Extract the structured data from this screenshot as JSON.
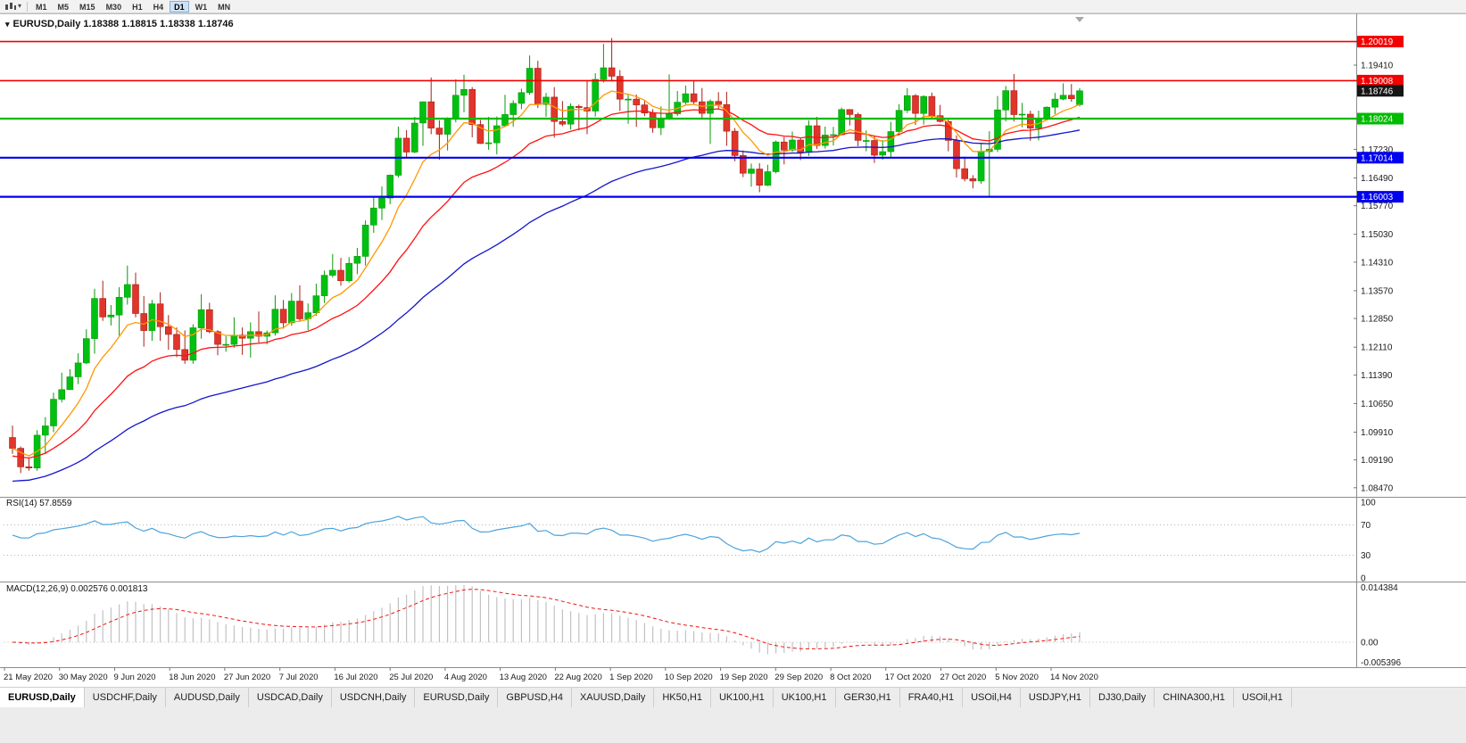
{
  "window": {
    "chart_title": "EURUSD,Daily 1.18388 1.18815 1.18338 1.18746"
  },
  "toolbar": {
    "timeframes": [
      {
        "label": "M1",
        "active": false
      },
      {
        "label": "M5",
        "active": false
      },
      {
        "label": "M15",
        "active": false
      },
      {
        "label": "M30",
        "active": false
      },
      {
        "label": "H1",
        "active": false
      },
      {
        "label": "H4",
        "active": false
      },
      {
        "label": "D1",
        "active": true
      },
      {
        "label": "W1",
        "active": false
      },
      {
        "label": "MN",
        "active": false
      }
    ]
  },
  "chart_data": {
    "type": "candlestick",
    "symbol": "EURUSD",
    "timeframe": "Daily",
    "title": "EURUSD,Daily 1.18388 1.18815 1.18338 1.18746",
    "ohlc": {
      "open": "1.18388",
      "high": "1.18815",
      "low": "1.18338",
      "close": "1.18746"
    },
    "price_range": [
      1.08258,
      1.20703
    ],
    "x_labels": [
      "21 May 2020",
      "30 May 2020",
      "9 Jun 2020",
      "18 Jun 2020",
      "27 Jun 2020",
      "7 Jul 2020",
      "16 Jul 2020",
      "25 Jul 2020",
      "4 Aug 2020",
      "13 Aug 2020",
      "22 Aug 2020",
      "1 Sep 2020",
      "10 Sep 2020",
      "19 Sep 2020",
      "29 Sep 2020",
      "8 Oct 2020",
      "17 Oct 2020",
      "27 Oct 2020",
      "5 Nov 2020",
      "14 Nov 2020"
    ],
    "price_axis_labels": [
      "1.19410",
      "1.17230",
      "1.16490",
      "1.15770",
      "1.15030",
      "1.14310",
      "1.13570",
      "1.12850",
      "1.12110",
      "1.11390",
      "1.10650",
      "1.09910",
      "1.09190",
      "1.08470"
    ],
    "hlines": [
      {
        "price": 1.20019,
        "label": "1.20019",
        "color": "#f40000",
        "width": 1.6
      },
      {
        "price": 1.19008,
        "label": "1.19008",
        "color": "#f40000",
        "width": 1.6
      },
      {
        "price": 1.18024,
        "label": "1.18024",
        "color": "#00bb00",
        "width": 2.2
      },
      {
        "price": 1.17014,
        "label": "1.17014",
        "color": "#0000f0",
        "width": 2.2
      },
      {
        "price": 1.16003,
        "label": "1.16003",
        "color": "#0000f0",
        "width": 2.2
      }
    ],
    "current_price": "1.18746",
    "colors": {
      "bull": "#00c012",
      "bull_stroke": "#089a08",
      "bear": "#e0352b",
      "bear_stroke": "#a81f17"
    },
    "moving_averages": [
      {
        "period": 50,
        "color": "#1414cc",
        "seed_offset": -0.0085
      },
      {
        "period": 21,
        "color": "#ff1111",
        "seed_offset": -0.002
      },
      {
        "period": 8,
        "color": "#ff9800",
        "seed_offset": 0
      }
    ],
    "rsi": {
      "label": "RSI(14) 57.8559",
      "value": "57.8559",
      "period": 14,
      "levels": [
        70,
        30
      ],
      "axis_labels": [
        "100",
        "70",
        "30",
        "0"
      ]
    },
    "macd": {
      "label": "MACD(12,26,9) 0.002576 0.001813",
      "value": "0.002576",
      "signal_value": "0.001813",
      "fast": 12,
      "slow": 26,
      "signal": 9,
      "range": [
        -0.005396,
        0.014384
      ],
      "axis_labels": [
        "0.014384",
        "0.00",
        "-0.005396"
      ]
    },
    "candles": [
      [
        1.0977,
        1.1008,
        1.0935,
        1.0949
      ],
      [
        1.0949,
        1.0954,
        1.0885,
        1.0901
      ],
      [
        1.0901,
        1.0925,
        1.0891,
        1.0898
      ],
      [
        1.0898,
        1.0996,
        1.0891,
        1.0983
      ],
      [
        1.0983,
        1.103,
        1.0934,
        1.1007
      ],
      [
        1.1007,
        1.1093,
        1.0991,
        1.1076
      ],
      [
        1.1076,
        1.1145,
        1.1068,
        1.1101
      ],
      [
        1.1101,
        1.1154,
        1.11,
        1.1134
      ],
      [
        1.1134,
        1.1195,
        1.1115,
        1.117
      ],
      [
        1.117,
        1.1257,
        1.1167,
        1.1233
      ],
      [
        1.1233,
        1.1362,
        1.1194,
        1.1337
      ],
      [
        1.1337,
        1.1383,
        1.1279,
        1.1289
      ],
      [
        1.1289,
        1.132,
        1.1267,
        1.1294
      ],
      [
        1.1294,
        1.1366,
        1.1241,
        1.134
      ],
      [
        1.134,
        1.1422,
        1.1321,
        1.1373
      ],
      [
        1.1373,
        1.1404,
        1.1288,
        1.1298
      ],
      [
        1.1298,
        1.1343,
        1.1212,
        1.1254
      ],
      [
        1.1254,
        1.1333,
        1.1227,
        1.1323
      ],
      [
        1.1323,
        1.1353,
        1.1227,
        1.1264
      ],
      [
        1.1264,
        1.1294,
        1.1204,
        1.1244
      ],
      [
        1.1244,
        1.1262,
        1.1185,
        1.1205
      ],
      [
        1.1205,
        1.1254,
        1.1168,
        1.1177
      ],
      [
        1.1177,
        1.127,
        1.1168,
        1.1261
      ],
      [
        1.1261,
        1.1348,
        1.1233,
        1.1308
      ],
      [
        1.1308,
        1.1326,
        1.1247,
        1.1251
      ],
      [
        1.1251,
        1.1255,
        1.119,
        1.1218
      ],
      [
        1.1218,
        1.1239,
        1.1199,
        1.1218
      ],
      [
        1.1218,
        1.1288,
        1.1209,
        1.1242
      ],
      [
        1.1242,
        1.1262,
        1.1191,
        1.1234
      ],
      [
        1.1234,
        1.1275,
        1.1184,
        1.1251
      ],
      [
        1.1251,
        1.1303,
        1.1223,
        1.1239
      ],
      [
        1.1239,
        1.1254,
        1.1218,
        1.1248
      ],
      [
        1.1248,
        1.1345,
        1.1241,
        1.1309
      ],
      [
        1.1309,
        1.1333,
        1.1259,
        1.1274
      ],
      [
        1.1274,
        1.1351,
        1.1266,
        1.133
      ],
      [
        1.133,
        1.1371,
        1.1277,
        1.1284
      ],
      [
        1.1284,
        1.1324,
        1.1255,
        1.13
      ],
      [
        1.13,
        1.1375,
        1.1292,
        1.1344
      ],
      [
        1.1344,
        1.1409,
        1.1325,
        1.1397
      ],
      [
        1.1397,
        1.1452,
        1.1391,
        1.141
      ],
      [
        1.141,
        1.1442,
        1.137,
        1.1383
      ],
      [
        1.1383,
        1.1444,
        1.1378,
        1.1428
      ],
      [
        1.1428,
        1.1468,
        1.14,
        1.1446
      ],
      [
        1.1446,
        1.1539,
        1.1422,
        1.1527
      ],
      [
        1.1527,
        1.1601,
        1.1507,
        1.1571
      ],
      [
        1.1571,
        1.1627,
        1.154,
        1.1597
      ],
      [
        1.1597,
        1.1658,
        1.1581,
        1.1656
      ],
      [
        1.1656,
        1.1782,
        1.165,
        1.1752
      ],
      [
        1.1752,
        1.1773,
        1.1701,
        1.1716
      ],
      [
        1.1716,
        1.1807,
        1.1713,
        1.1791
      ],
      [
        1.1791,
        1.1847,
        1.1732,
        1.1846
      ],
      [
        1.1846,
        1.1909,
        1.1762,
        1.1778
      ],
      [
        1.1778,
        1.1798,
        1.1696,
        1.1762
      ],
      [
        1.1762,
        1.1806,
        1.172,
        1.1802
      ],
      [
        1.1802,
        1.1904,
        1.1793,
        1.1863
      ],
      [
        1.1863,
        1.1916,
        1.1819,
        1.1878
      ],
      [
        1.1878,
        1.1884,
        1.1754,
        1.1787
      ],
      [
        1.1787,
        1.1799,
        1.1737,
        1.1738
      ],
      [
        1.1738,
        1.1807,
        1.1722,
        1.174
      ],
      [
        1.174,
        1.1808,
        1.171,
        1.1784
      ],
      [
        1.1784,
        1.1864,
        1.1781,
        1.1813
      ],
      [
        1.1813,
        1.185,
        1.1782,
        1.1842
      ],
      [
        1.1842,
        1.188,
        1.1827,
        1.187
      ],
      [
        1.187,
        1.1966,
        1.1864,
        1.1933
      ],
      [
        1.1933,
        1.1952,
        1.183,
        1.1839
      ],
      [
        1.1839,
        1.1869,
        1.1807,
        1.1858
      ],
      [
        1.1858,
        1.1884,
        1.1753,
        1.1795
      ],
      [
        1.1795,
        1.1848,
        1.1783,
        1.1788
      ],
      [
        1.1788,
        1.1842,
        1.1774,
        1.1834
      ],
      [
        1.1834,
        1.1839,
        1.1772,
        1.1831
      ],
      [
        1.1831,
        1.19,
        1.1762,
        1.1822
      ],
      [
        1.1822,
        1.192,
        1.1808,
        1.1904
      ],
      [
        1.1904,
        1.1996,
        1.1896,
        1.1934
      ],
      [
        1.1934,
        1.2011,
        1.1899,
        1.1912
      ],
      [
        1.1912,
        1.1928,
        1.1822,
        1.1853
      ],
      [
        1.1853,
        1.1864,
        1.1789,
        1.1853
      ],
      [
        1.1853,
        1.1865,
        1.1781,
        1.1838
      ],
      [
        1.1838,
        1.1848,
        1.1809,
        1.1817
      ],
      [
        1.1817,
        1.1827,
        1.1766,
        1.1779
      ],
      [
        1.1779,
        1.1834,
        1.176,
        1.1802
      ],
      [
        1.1802,
        1.1917,
        1.1799,
        1.1815
      ],
      [
        1.1815,
        1.1874,
        1.1809,
        1.1845
      ],
      [
        1.1845,
        1.1888,
        1.1839,
        1.1867
      ],
      [
        1.1867,
        1.19,
        1.1838,
        1.1846
      ],
      [
        1.1846,
        1.1882,
        1.1805,
        1.1816
      ],
      [
        1.1816,
        1.1852,
        1.1737,
        1.1847
      ],
      [
        1.1847,
        1.1871,
        1.1827,
        1.1839
      ],
      [
        1.1839,
        1.1872,
        1.1732,
        1.177
      ],
      [
        1.177,
        1.1778,
        1.1692,
        1.1707
      ],
      [
        1.1707,
        1.172,
        1.1651,
        1.1661
      ],
      [
        1.1661,
        1.1686,
        1.1626,
        1.1672
      ],
      [
        1.1672,
        1.1687,
        1.1612,
        1.163
      ],
      [
        1.163,
        1.1683,
        1.1628,
        1.1665
      ],
      [
        1.1665,
        1.1746,
        1.1661,
        1.1742
      ],
      [
        1.1742,
        1.1755,
        1.1684,
        1.1721
      ],
      [
        1.1721,
        1.1769,
        1.1716,
        1.1747
      ],
      [
        1.1747,
        1.1752,
        1.1695,
        1.1715
      ],
      [
        1.1715,
        1.1798,
        1.1706,
        1.1784
      ],
      [
        1.1784,
        1.1807,
        1.1724,
        1.1733
      ],
      [
        1.1733,
        1.1782,
        1.1725,
        1.176
      ],
      [
        1.176,
        1.1781,
        1.1733,
        1.1761
      ],
      [
        1.1761,
        1.1831,
        1.1759,
        1.1826
      ],
      [
        1.1826,
        1.1827,
        1.1785,
        1.1813
      ],
      [
        1.1813,
        1.1818,
        1.1731,
        1.1746
      ],
      [
        1.1746,
        1.1772,
        1.1718,
        1.1746
      ],
      [
        1.1746,
        1.1758,
        1.1688,
        1.1708
      ],
      [
        1.1708,
        1.1747,
        1.1696,
        1.1717
      ],
      [
        1.1717,
        1.1794,
        1.1703,
        1.1769
      ],
      [
        1.1769,
        1.184,
        1.1759,
        1.1824
      ],
      [
        1.1824,
        1.1881,
        1.1817,
        1.1862
      ],
      [
        1.1862,
        1.1866,
        1.1786,
        1.1816
      ],
      [
        1.1816,
        1.1863,
        1.1787,
        1.186
      ],
      [
        1.186,
        1.187,
        1.1803,
        1.181
      ],
      [
        1.181,
        1.1838,
        1.1793,
        1.1795
      ],
      [
        1.1795,
        1.18,
        1.1718,
        1.1746
      ],
      [
        1.1746,
        1.1759,
        1.165,
        1.1673
      ],
      [
        1.1673,
        1.1704,
        1.164,
        1.1647
      ],
      [
        1.1647,
        1.1656,
        1.1622,
        1.1641
      ],
      [
        1.1641,
        1.174,
        1.1634,
        1.1717
      ],
      [
        1.1717,
        1.177,
        1.1603,
        1.1723
      ],
      [
        1.1723,
        1.1861,
        1.1716,
        1.1825
      ],
      [
        1.1825,
        1.1887,
        1.1795,
        1.1875
      ],
      [
        1.1875,
        1.1918,
        1.1795,
        1.1813
      ],
      [
        1.1813,
        1.1843,
        1.178,
        1.1814
      ],
      [
        1.1814,
        1.1823,
        1.1745,
        1.1778
      ],
      [
        1.1778,
        1.1823,
        1.1746,
        1.1803
      ],
      [
        1.1803,
        1.1834,
        1.1798,
        1.1832
      ],
      [
        1.1832,
        1.1869,
        1.1814,
        1.1853
      ],
      [
        1.1853,
        1.1894,
        1.185,
        1.1863
      ],
      [
        1.1863,
        1.1892,
        1.1846,
        1.1854
      ],
      [
        1.18388,
        1.18815,
        1.18338,
        1.18746
      ]
    ]
  },
  "tabs": [
    {
      "label": "EURUSD,Daily",
      "active": true
    },
    {
      "label": "USDCHF,Daily",
      "active": false
    },
    {
      "label": "AUDUSD,Daily",
      "active": false
    },
    {
      "label": "USDCAD,Daily",
      "active": false
    },
    {
      "label": "USDCNH,Daily",
      "active": false
    },
    {
      "label": "EURUSD,Daily",
      "active": false
    },
    {
      "label": "GBPUSD,H4",
      "active": false
    },
    {
      "label": "XAUUSD,Daily",
      "active": false
    },
    {
      "label": "HK50,H1",
      "active": false
    },
    {
      "label": "UK100,H1",
      "active": false
    },
    {
      "label": "UK100,H1",
      "active": false
    },
    {
      "label": "GER30,H1",
      "active": false
    },
    {
      "label": "FRA40,H1",
      "active": false
    },
    {
      "label": "USOil,H4",
      "active": false
    },
    {
      "label": "USDJPY,H1",
      "active": false
    },
    {
      "label": "DJ30,Daily",
      "active": false
    },
    {
      "label": "CHINA300,H1",
      "active": false
    },
    {
      "label": "USOil,H1",
      "active": false
    }
  ]
}
